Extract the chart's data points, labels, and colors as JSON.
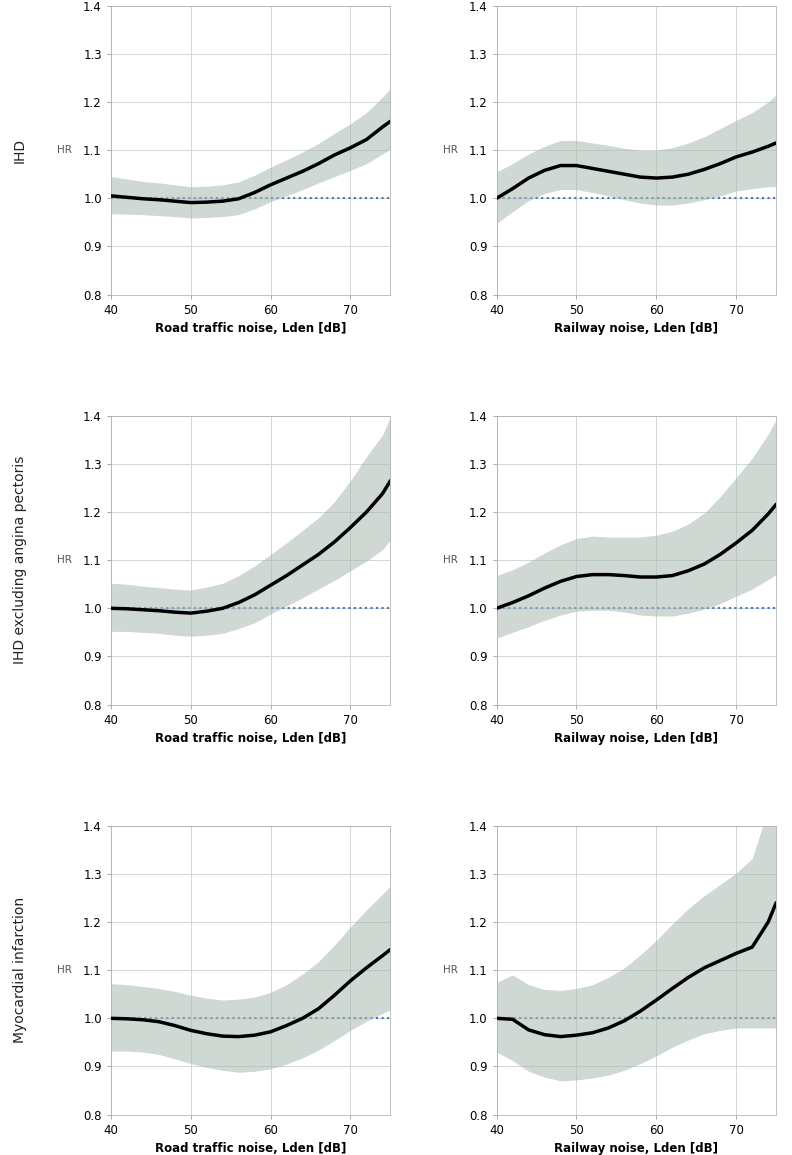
{
  "row_labels": [
    "IHD",
    "IHD excluding angina pectoris",
    "Myocardial infarction"
  ],
  "col_labels": [
    "Road traffic noise, Lden [dB]",
    "Railway noise, Lden [dB]"
  ],
  "xlim": [
    40,
    75
  ],
  "ylim": [
    0.8,
    1.4
  ],
  "yticks": [
    0.8,
    0.9,
    1.0,
    1.1,
    1.2,
    1.3,
    1.4
  ],
  "xticks": [
    40,
    50,
    60,
    70
  ],
  "background_color": "#ffffff",
  "ribbon_color": "#a8b8b0",
  "ribbon_alpha": 0.55,
  "line_color": "#000000",
  "ref_line_color": "#4472c4",
  "ref_line_style": "dotted",
  "plots": [
    {
      "row": 0,
      "col": 0,
      "x": [
        40,
        42,
        44,
        46,
        48,
        50,
        52,
        54,
        56,
        58,
        60,
        62,
        64,
        66,
        68,
        70,
        72,
        74,
        75
      ],
      "y": [
        1.005,
        1.002,
        0.999,
        0.997,
        0.994,
        0.991,
        0.992,
        0.994,
        0.999,
        1.012,
        1.028,
        1.042,
        1.056,
        1.072,
        1.09,
        1.105,
        1.122,
        1.148,
        1.16
      ],
      "y_lo": [
        0.968,
        0.967,
        0.966,
        0.964,
        0.962,
        0.959,
        0.96,
        0.962,
        0.966,
        0.978,
        0.993,
        1.005,
        1.018,
        1.032,
        1.045,
        1.058,
        1.072,
        1.092,
        1.102
      ],
      "y_hi": [
        1.045,
        1.04,
        1.035,
        1.032,
        1.028,
        1.024,
        1.025,
        1.028,
        1.034,
        1.048,
        1.065,
        1.08,
        1.096,
        1.114,
        1.135,
        1.155,
        1.178,
        1.21,
        1.228
      ]
    },
    {
      "row": 0,
      "col": 1,
      "x": [
        40,
        42,
        44,
        46,
        48,
        50,
        52,
        54,
        56,
        58,
        60,
        62,
        64,
        66,
        68,
        70,
        72,
        74,
        75
      ],
      "y": [
        1.0,
        1.02,
        1.042,
        1.058,
        1.068,
        1.068,
        1.062,
        1.056,
        1.05,
        1.044,
        1.042,
        1.044,
        1.05,
        1.06,
        1.072,
        1.086,
        1.096,
        1.108,
        1.115
      ],
      "y_lo": [
        0.948,
        0.972,
        0.995,
        1.01,
        1.018,
        1.018,
        1.012,
        1.005,
        0.997,
        0.99,
        0.986,
        0.986,
        0.99,
        0.997,
        1.005,
        1.015,
        1.02,
        1.024,
        1.024
      ],
      "y_hi": [
        1.055,
        1.072,
        1.092,
        1.108,
        1.12,
        1.12,
        1.115,
        1.11,
        1.104,
        1.1,
        1.1,
        1.105,
        1.115,
        1.128,
        1.145,
        1.162,
        1.178,
        1.2,
        1.215
      ]
    },
    {
      "row": 1,
      "col": 0,
      "x": [
        40,
        42,
        44,
        46,
        48,
        50,
        52,
        54,
        56,
        58,
        60,
        62,
        64,
        66,
        68,
        70,
        72,
        74,
        75
      ],
      "y": [
        1.0,
        0.999,
        0.997,
        0.995,
        0.992,
        0.99,
        0.994,
        1.0,
        1.012,
        1.028,
        1.048,
        1.068,
        1.09,
        1.112,
        1.138,
        1.168,
        1.2,
        1.238,
        1.265
      ],
      "y_lo": [
        0.952,
        0.952,
        0.95,
        0.948,
        0.944,
        0.942,
        0.944,
        0.948,
        0.958,
        0.97,
        0.988,
        1.005,
        1.022,
        1.04,
        1.058,
        1.078,
        1.098,
        1.122,
        1.142
      ],
      "y_hi": [
        1.052,
        1.05,
        1.046,
        1.043,
        1.04,
        1.038,
        1.044,
        1.052,
        1.068,
        1.088,
        1.112,
        1.136,
        1.162,
        1.188,
        1.222,
        1.265,
        1.315,
        1.36,
        1.398
      ]
    },
    {
      "row": 1,
      "col": 1,
      "x": [
        40,
        42,
        44,
        46,
        48,
        50,
        52,
        54,
        56,
        58,
        60,
        62,
        64,
        66,
        68,
        70,
        72,
        74,
        75
      ],
      "y": [
        1.0,
        1.012,
        1.026,
        1.042,
        1.056,
        1.066,
        1.07,
        1.07,
        1.068,
        1.065,
        1.065,
        1.068,
        1.078,
        1.092,
        1.112,
        1.136,
        1.162,
        1.196,
        1.216
      ],
      "y_lo": [
        0.938,
        0.95,
        0.962,
        0.975,
        0.986,
        0.994,
        0.996,
        0.996,
        0.992,
        0.986,
        0.984,
        0.984,
        0.99,
        0.998,
        1.01,
        1.025,
        1.04,
        1.06,
        1.07
      ],
      "y_hi": [
        1.068,
        1.08,
        1.096,
        1.115,
        1.132,
        1.145,
        1.15,
        1.148,
        1.148,
        1.148,
        1.152,
        1.16,
        1.175,
        1.198,
        1.232,
        1.272,
        1.312,
        1.362,
        1.392
      ]
    },
    {
      "row": 2,
      "col": 0,
      "x": [
        40,
        42,
        44,
        46,
        48,
        50,
        52,
        54,
        56,
        58,
        60,
        62,
        64,
        66,
        68,
        70,
        72,
        74,
        75
      ],
      "y": [
        1.0,
        0.999,
        0.997,
        0.993,
        0.985,
        0.975,
        0.968,
        0.963,
        0.962,
        0.965,
        0.972,
        0.985,
        1.0,
        1.02,
        1.048,
        1.078,
        1.105,
        1.13,
        1.143
      ],
      "y_lo": [
        0.932,
        0.932,
        0.93,
        0.925,
        0.916,
        0.906,
        0.898,
        0.892,
        0.888,
        0.89,
        0.895,
        0.905,
        0.918,
        0.934,
        0.954,
        0.975,
        0.994,
        1.01,
        1.018
      ],
      "y_hi": [
        1.072,
        1.07,
        1.066,
        1.062,
        1.056,
        1.048,
        1.042,
        1.038,
        1.04,
        1.044,
        1.054,
        1.07,
        1.092,
        1.118,
        1.152,
        1.19,
        1.225,
        1.258,
        1.275
      ]
    },
    {
      "row": 2,
      "col": 1,
      "x": [
        40,
        42,
        44,
        46,
        48,
        50,
        52,
        54,
        56,
        58,
        60,
        62,
        64,
        66,
        68,
        70,
        72,
        74,
        75
      ],
      "y": [
        1.0,
        0.998,
        0.976,
        0.966,
        0.962,
        0.965,
        0.97,
        0.98,
        0.995,
        1.015,
        1.038,
        1.062,
        1.085,
        1.105,
        1.12,
        1.135,
        1.148,
        1.2,
        1.24
      ],
      "y_lo": [
        0.93,
        0.912,
        0.89,
        0.878,
        0.87,
        0.872,
        0.876,
        0.882,
        0.892,
        0.906,
        0.922,
        0.94,
        0.955,
        0.968,
        0.975,
        0.98,
        0.98,
        0.98,
        0.98
      ],
      "y_hi": [
        1.075,
        1.09,
        1.07,
        1.06,
        1.058,
        1.062,
        1.07,
        1.085,
        1.105,
        1.132,
        1.162,
        1.196,
        1.228,
        1.255,
        1.278,
        1.302,
        1.332,
        1.435,
        1.48
      ]
    }
  ],
  "grid_color": "#d0d8d4",
  "grid_lw": 0.7,
  "line_lw": 2.5,
  "ref_lw": 1.5,
  "font_size_axis_label": 8.5,
  "font_size_tick": 8.5,
  "font_size_row_label": 10,
  "hr_label": "HR"
}
